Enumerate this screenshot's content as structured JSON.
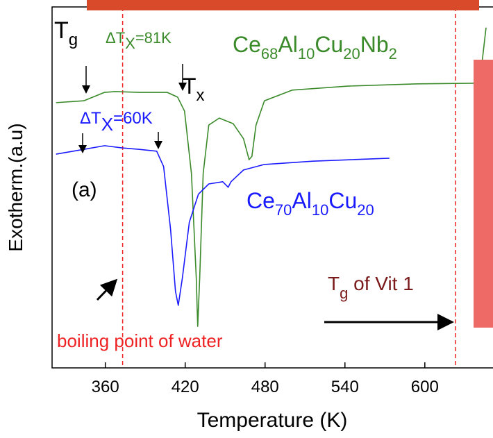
{
  "chart_data": {
    "type": "line",
    "x_label": "Temperature (K)",
    "y_label": "Exotherm.(a.u)",
    "xlim": [
      320,
      646
    ],
    "ylim": [
      0,
      100
    ],
    "xticks": [
      360,
      420,
      480,
      540,
      600
    ],
    "series": [
      {
        "name": "Ce68Al10Cu20Nb2",
        "color": "#3a8a2a",
        "x": [
          323.0,
          343.8,
          359.5,
          367.3,
          385.6,
          406.4,
          414.3,
          419.5,
          424.7,
          428.3,
          429.4,
          430.9,
          433.5,
          437.7,
          445.6,
          456.0,
          463.8,
          468.0,
          470.1,
          473.2,
          479.5,
          500.3,
          542.1,
          594.3,
          641.2,
          646.0
        ],
        "values": [
          72.1,
          72.6,
          74.9,
          75.1,
          74.9,
          74.9,
          73.6,
          69.8,
          52.8,
          24.5,
          11.3,
          24.5,
          52.8,
          66.0,
          67.9,
          66.4,
          62.3,
          56.6,
          57.5,
          66.0,
          72.6,
          75.5,
          76.6,
          77.2,
          77.4,
          92.5
        ]
      },
      {
        "name": "Ce70Al10Cu20",
        "color": "#1a1aff",
        "x": [
          323.0,
          343.8,
          359.5,
          372.5,
          385.6,
          398.6,
          403.8,
          409.0,
          412.7,
          414.8,
          417.9,
          423.1,
          429.9,
          437.7,
          448.2,
          452.3,
          454.4,
          463.8,
          479.5,
          516.0,
          573.4
        ],
        "values": [
          58.1,
          59.4,
          60.4,
          59.8,
          59.4,
          58.9,
          54.7,
          37.7,
          20.8,
          17.0,
          24.5,
          39.6,
          47.2,
          50.0,
          50.6,
          49.1,
          50.6,
          53.8,
          55.3,
          56.2,
          57.0
        ]
      }
    ],
    "vlines": {
      "color": "#ee2222",
      "x": [
        373,
        623
      ]
    },
    "annotations": {
      "tg": [
        "T",
        "g"
      ],
      "dtx_green": [
        "ΔT",
        "X",
        "=81K"
      ],
      "tx": [
        "T",
        "x"
      ],
      "dtx_blue": [
        "ΔT",
        "X",
        "=60K"
      ],
      "panel": "(a)",
      "boiling": "boiling point of water",
      "vit": [
        "T",
        "g",
        " of Vit 1"
      ]
    }
  }
}
